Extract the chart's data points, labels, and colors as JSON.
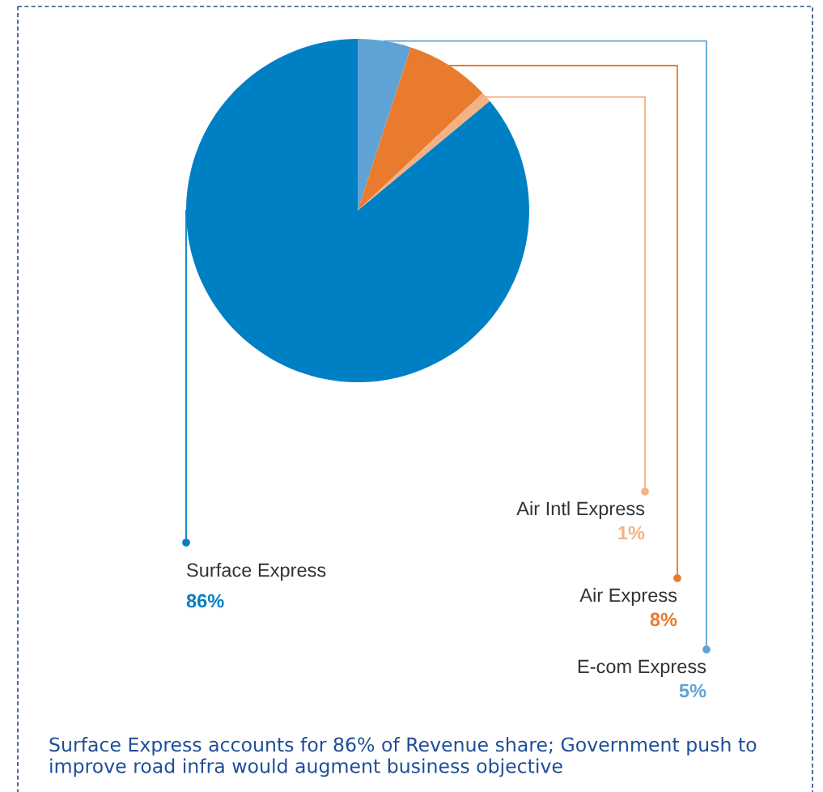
{
  "chart_data": {
    "type": "pie",
    "categories": [
      "E-com Express",
      "Air Express",
      "Air Intl Express",
      "Surface Express"
    ],
    "values": [
      5,
      8,
      1,
      86
    ],
    "colors": [
      "#5fa3d6",
      "#e87b2e",
      "#f4b183",
      "#0080c4"
    ],
    "value_labels": [
      "5%",
      "8%",
      "1%",
      "86%"
    ],
    "legend": "bottom",
    "annotations": [
      "Surface Express accounts for 86% of Revenue share; Government push to improve road infra would augment business objective"
    ]
  }
}
